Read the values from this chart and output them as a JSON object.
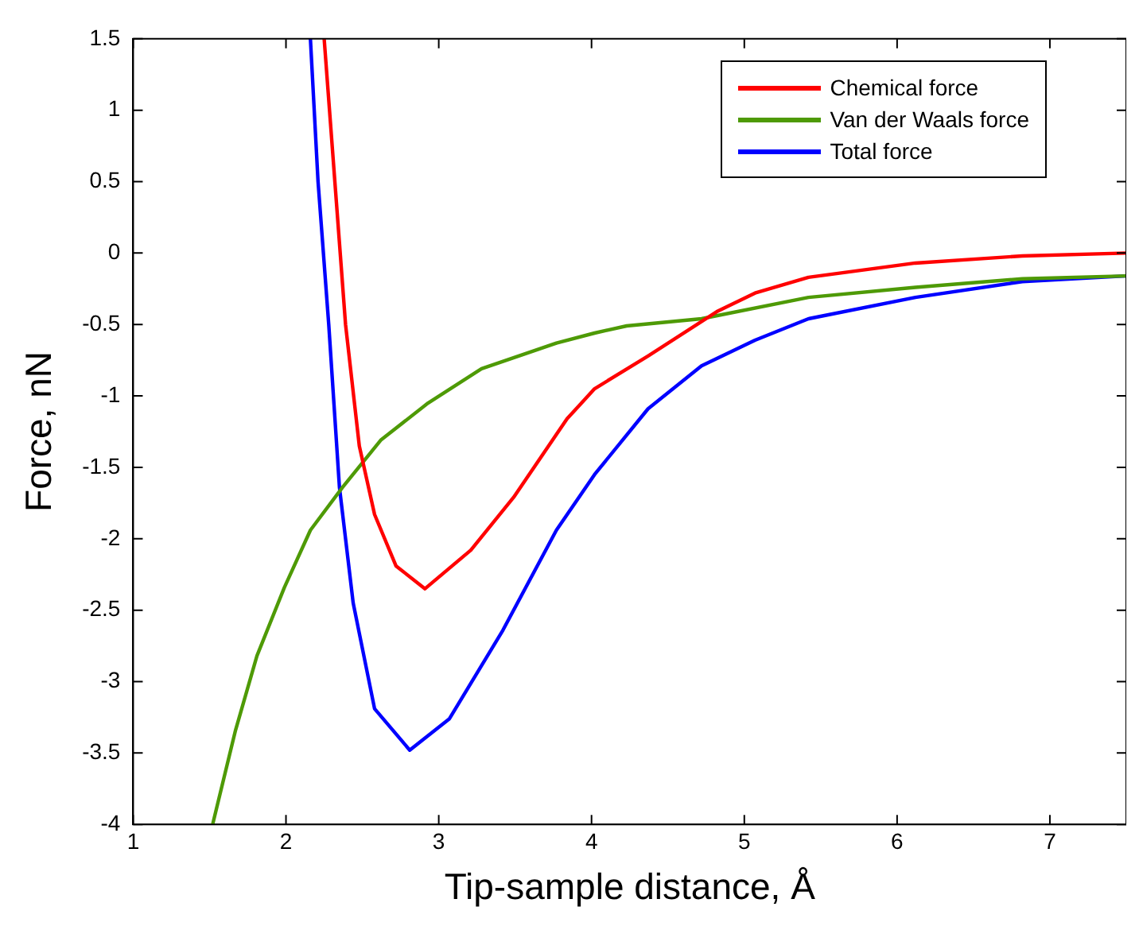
{
  "chart_data": {
    "type": "line",
    "xlabel": "Tip-sample distance, Å",
    "ylabel": "Force, nN",
    "xlim": [
      1,
      7.5
    ],
    "ylim": [
      -4,
      1.5
    ],
    "xticks": [
      1,
      2,
      3,
      4,
      5,
      6,
      7
    ],
    "yticks": [
      -4,
      -3.5,
      -3,
      -2.5,
      -2,
      -1.5,
      -1,
      -0.5,
      0,
      0.5,
      1,
      1.5
    ],
    "grid": false,
    "legend": "top right",
    "series": [
      {
        "name": "Chemical force",
        "color": "#ff0000",
        "x": [
          2.25,
          2.32,
          2.39,
          2.48,
          2.58,
          2.72,
          2.91,
          3.21,
          3.49,
          3.84,
          4.02,
          4.37,
          4.82,
          5.07,
          5.42,
          6.12,
          6.82,
          7.5
        ],
        "values": [
          1.5,
          0.5,
          -0.5,
          -1.35,
          -1.83,
          -2.19,
          -2.35,
          -2.08,
          -1.71,
          -1.16,
          -0.95,
          -0.72,
          -0.41,
          -0.28,
          -0.17,
          -0.07,
          -0.02,
          0
        ]
      },
      {
        "name": "Van der Waals force",
        "color": "#4e9a06",
        "x": [
          1.52,
          1.67,
          1.81,
          1.99,
          2.16,
          2.37,
          2.62,
          2.93,
          3.28,
          3.77,
          4.02,
          4.23,
          4.72,
          5.42,
          6.12,
          6.82,
          7.5
        ],
        "values": [
          -4,
          -3.34,
          -2.82,
          -2.34,
          -1.94,
          -1.64,
          -1.31,
          -1.05,
          -0.81,
          -0.63,
          -0.56,
          -0.51,
          -0.46,
          -0.31,
          -0.24,
          -0.18,
          -0.16
        ]
      },
      {
        "name": "Total force",
        "color": "#0000ff",
        "x": [
          2.16,
          2.21,
          2.28,
          2.35,
          2.44,
          2.58,
          2.81,
          3.07,
          3.42,
          3.77,
          4.02,
          4.37,
          4.72,
          5.07,
          5.42,
          6.12,
          6.82,
          7.5
        ],
        "values": [
          1.5,
          0.5,
          -0.5,
          -1.64,
          -2.45,
          -3.19,
          -3.48,
          -3.26,
          -2.64,
          -1.94,
          -1.55,
          -1.09,
          -0.79,
          -0.61,
          -0.46,
          -0.31,
          -0.2,
          -0.16
        ]
      }
    ]
  }
}
